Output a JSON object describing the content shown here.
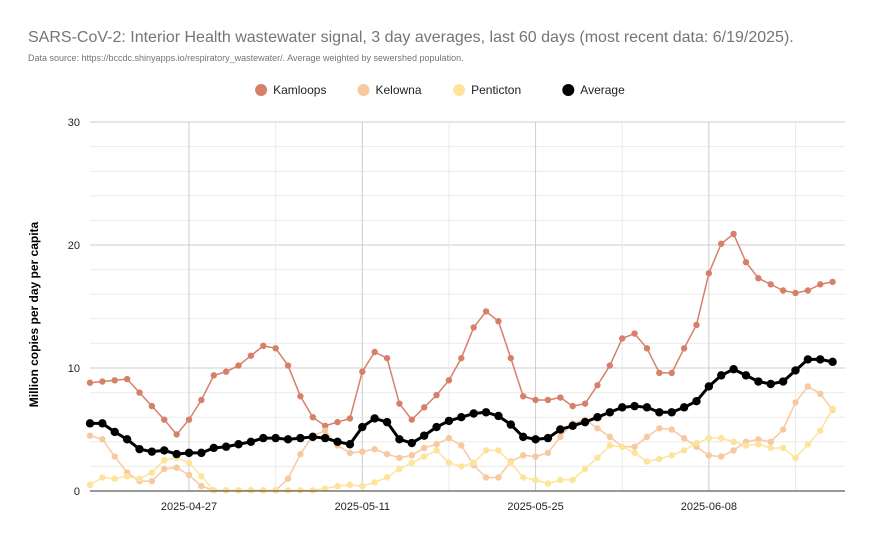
{
  "chart_data": {
    "type": "line",
    "title": "SARS-CoV-2: Interior Health wastewater signal, 3 day averages, last 60 days (most recent data: 6/19/2025).",
    "subtitle": "Data source: https://bccdc.shinyapps.io/respiratory_wastewater/. Average weighted by sewershed population.",
    "xlabel": "",
    "ylabel": "Million copies per day per capita",
    "ylim": [
      0,
      30
    ],
    "yticks": [
      0,
      10,
      20,
      30
    ],
    "x_start": "2025-04-19",
    "x_end": "2025-06-19",
    "xticks": [
      {
        "date": "2025-04-27",
        "label": "2025-04-27"
      },
      {
        "date": "2025-05-11",
        "label": "2025-05-11"
      },
      {
        "date": "2025-05-25",
        "label": "2025-05-25"
      },
      {
        "date": "2025-06-08",
        "label": "2025-06-08"
      }
    ],
    "x_minor_gridlines": [
      "2025-05-04",
      "2025-05-18",
      "2025-06-01",
      "2025-06-15"
    ],
    "legend_position": "top",
    "series": [
      {
        "name": "Kamloops",
        "color": "#d6806a",
        "line_width": 1.5,
        "marker_radius": 3.2,
        "values": [
          8.8,
          8.9,
          9.0,
          9.1,
          8.0,
          6.9,
          5.8,
          4.6,
          5.8,
          7.4,
          9.4,
          9.7,
          10.2,
          11.0,
          11.8,
          11.6,
          10.2,
          7.7,
          6.0,
          5.3,
          5.6,
          5.9,
          9.7,
          11.3,
          10.8,
          7.1,
          5.8,
          6.8,
          7.8,
          9.0,
          10.8,
          13.3,
          14.6,
          13.8,
          10.8,
          7.7,
          7.4,
          7.4,
          7.6,
          6.9,
          7.1,
          8.6,
          10.2,
          12.4,
          12.8,
          11.6,
          9.6,
          9.6,
          11.6,
          13.5,
          17.7,
          20.1,
          20.9,
          18.6,
          17.3,
          16.8,
          16.3,
          16.1,
          16.3,
          16.8,
          17.0
        ]
      },
      {
        "name": "Kelowna",
        "color": "#f8c9a0",
        "line_width": 1.5,
        "marker_radius": 3.2,
        "values": [
          4.5,
          4.2,
          2.8,
          1.5,
          0.8,
          0.8,
          1.8,
          1.9,
          1.3,
          0.4,
          0.05,
          0.05,
          0.05,
          0.05,
          0.05,
          0.05,
          1.0,
          3.0,
          4.5,
          4.9,
          3.7,
          3.1,
          3.2,
          3.4,
          3.0,
          2.7,
          2.9,
          3.5,
          3.8,
          4.3,
          3.7,
          2.1,
          1.1,
          1.1,
          2.4,
          2.9,
          2.8,
          3.1,
          4.4,
          5.5,
          5.8,
          5.1,
          4.4,
          3.6,
          3.6,
          4.4,
          5.1,
          5.0,
          4.3,
          3.6,
          2.9,
          2.8,
          3.3,
          4.0,
          4.2,
          4.0,
          5.0,
          7.2,
          8.5,
          7.9,
          6.6
        ]
      },
      {
        "name": "Penticton",
        "color": "#fde49a",
        "line_width": 1.5,
        "marker_radius": 3.2,
        "values": [
          0.5,
          1.1,
          1.0,
          1.2,
          1.0,
          1.5,
          2.5,
          2.7,
          2.3,
          1.2,
          0.05,
          0.05,
          0.05,
          0.05,
          0.05,
          0.05,
          0.05,
          0.05,
          0.05,
          0.2,
          0.4,
          0.5,
          0.4,
          0.7,
          1.1,
          1.8,
          2.3,
          2.8,
          3.3,
          2.3,
          2.0,
          2.3,
          3.3,
          3.3,
          2.3,
          1.1,
          0.9,
          0.6,
          0.9,
          0.9,
          1.8,
          2.7,
          3.7,
          3.6,
          3.1,
          2.4,
          2.6,
          2.9,
          3.3,
          3.9,
          4.3,
          4.3,
          4.0,
          3.7,
          3.8,
          3.5,
          3.5,
          2.7,
          3.8,
          4.9,
          6.7
        ]
      },
      {
        "name": "Average",
        "color": "#000000",
        "line_width": 3,
        "marker_radius": 4.2,
        "values": [
          5.5,
          5.5,
          4.8,
          4.2,
          3.4,
          3.2,
          3.3,
          3.0,
          3.1,
          3.1,
          3.5,
          3.6,
          3.8,
          4.0,
          4.3,
          4.3,
          4.2,
          4.3,
          4.4,
          4.3,
          4.0,
          3.8,
          5.2,
          5.9,
          5.6,
          4.2,
          3.9,
          4.5,
          5.2,
          5.7,
          6.0,
          6.3,
          6.4,
          6.1,
          5.4,
          4.4,
          4.2,
          4.3,
          5.0,
          5.3,
          5.6,
          6.0,
          6.4,
          6.8,
          6.9,
          6.8,
          6.4,
          6.4,
          6.8,
          7.3,
          8.5,
          9.4,
          9.9,
          9.4,
          8.9,
          8.7,
          8.9,
          9.8,
          10.7,
          10.7,
          10.5
        ]
      }
    ]
  }
}
